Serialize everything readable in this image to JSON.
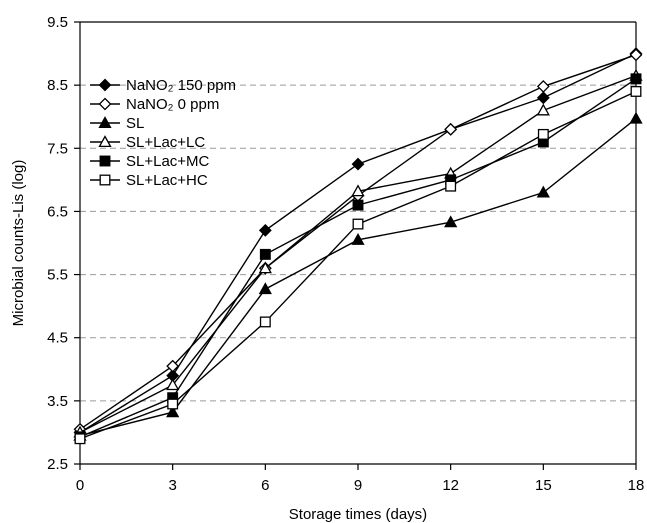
{
  "chart_data": {
    "type": "line",
    "xlabel": "Storage times (days)",
    "ylabel": "Microbial counts-Lis (log)",
    "x": [
      0,
      3,
      6,
      9,
      12,
      15,
      18
    ],
    "xlim": [
      0,
      18
    ],
    "ylim": [
      2.5,
      9.5
    ],
    "xticks": [
      "0",
      "3",
      "6",
      "9",
      "12",
      "15",
      "18"
    ],
    "yticks": [
      "2.5",
      "3.5",
      "4.5",
      "5.5",
      "6.5",
      "7.5",
      "8.5",
      "9.5"
    ],
    "grid": "horizontal-dashed",
    "legend_position": "top-left",
    "series": [
      {
        "name": "NaNO₂ 150 ppm",
        "marker": "diamond-filled",
        "values": [
          3.0,
          3.9,
          6.2,
          7.25,
          7.8,
          8.3,
          9.0
        ]
      },
      {
        "name": "NaNO₂ 0 ppm",
        "marker": "diamond-open",
        "values": [
          3.05,
          4.05,
          5.6,
          6.75,
          7.8,
          8.48,
          8.98
        ]
      },
      {
        "name": "SL",
        "marker": "triangle-filled",
        "values": [
          2.95,
          3.32,
          5.27,
          6.05,
          6.33,
          6.8,
          7.97
        ]
      },
      {
        "name": "SL+Lac+LC",
        "marker": "triangle-open",
        "values": [
          3.0,
          3.75,
          5.6,
          6.82,
          7.1,
          8.1,
          8.65
        ]
      },
      {
        "name": "SL+Lac+MC",
        "marker": "square-filled",
        "values": [
          2.93,
          3.55,
          5.82,
          6.6,
          7.0,
          7.6,
          8.6
        ]
      },
      {
        "name": "SL+Lac+HC",
        "marker": "square-open",
        "values": [
          2.9,
          3.45,
          4.75,
          6.3,
          6.9,
          7.72,
          8.4
        ]
      }
    ]
  }
}
